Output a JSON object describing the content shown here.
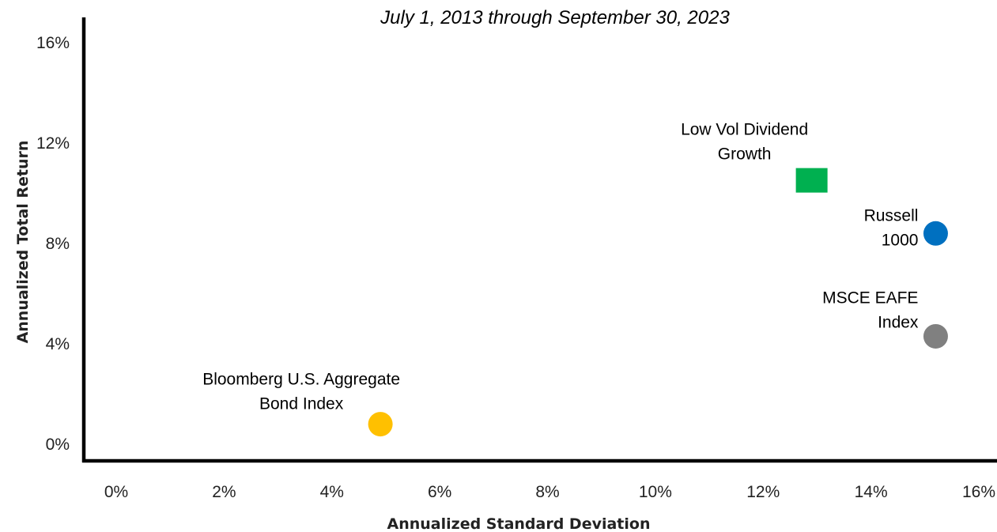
{
  "chart_data": {
    "type": "scatter",
    "subtitle": "July 1, 2013 through September 30, 2023",
    "xlabel": "Annualized Standard Deviation",
    "ylabel": "Annualized Total Return",
    "xlim": [
      0,
      16
    ],
    "ylim": [
      0,
      16
    ],
    "x_ticks": [
      0,
      2,
      4,
      6,
      8,
      10,
      12,
      14,
      16
    ],
    "y_ticks": [
      0,
      4,
      8,
      12,
      16
    ],
    "x_tick_labels": [
      "0%",
      "2%",
      "4%",
      "6%",
      "8%",
      "10%",
      "12%",
      "14%",
      "16%"
    ],
    "y_tick_labels": [
      "0%",
      "4%",
      "8%",
      "12%",
      "16%"
    ],
    "grid": false,
    "legend": false,
    "points": [
      {
        "label_lines": [
          "Low Vol Dividend",
          "Growth"
        ],
        "x": 12.9,
        "y": 10.5,
        "marker": "square",
        "color": "#00B050"
      },
      {
        "label_lines": [
          "Russell",
          "1000"
        ],
        "x": 15.2,
        "y": 8.4,
        "marker": "circle",
        "color": "#0070C0"
      },
      {
        "label_lines": [
          "MSCE EAFE",
          "Index"
        ],
        "x": 15.2,
        "y": 4.3,
        "marker": "circle",
        "color": "#808080"
      },
      {
        "label_lines": [
          "Bloomberg U.S. Aggregate",
          "Bond Index"
        ],
        "x": 4.9,
        "y": 0.8,
        "marker": "circle",
        "color": "#FFC000"
      }
    ]
  }
}
